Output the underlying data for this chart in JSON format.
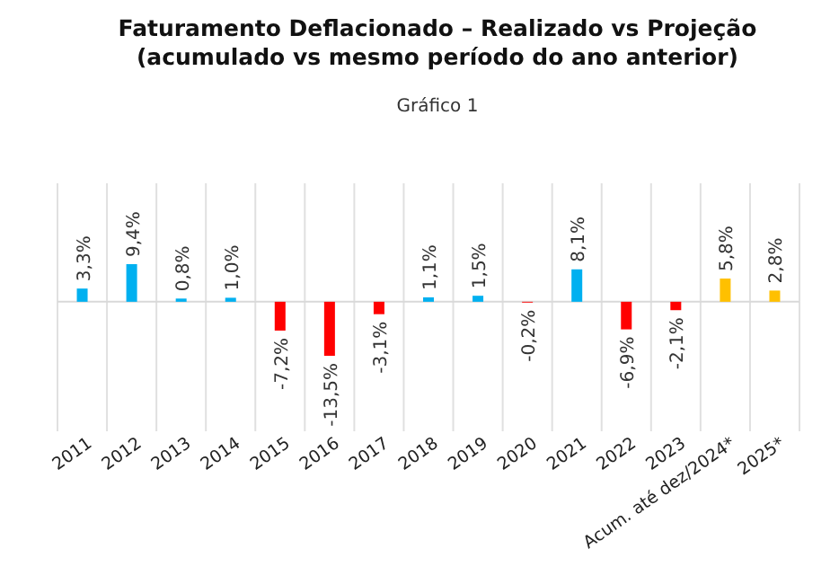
{
  "chart_data": {
    "type": "bar",
    "title": "Faturamento Deflacionado – Realizado vs Projeção\n(acumulado vs mesmo período do ano anterior)",
    "subtitle": "Gráfico 1",
    "categories": [
      "2011",
      "2012",
      "2013",
      "2014",
      "2015",
      "2016",
      "2017",
      "2018",
      "2019",
      "2020",
      "2021",
      "2022",
      "2023",
      "Acum. até dez/2024*",
      "2025*"
    ],
    "values": [
      3.3,
      9.4,
      0.8,
      1.0,
      -7.2,
      -13.5,
      -3.1,
      1.1,
      1.5,
      -0.2,
      8.1,
      -6.9,
      -2.1,
      5.8,
      2.8
    ],
    "value_labels": [
      "3,3%",
      "9,4%",
      "0,8%",
      "1,0%",
      "-7,2%",
      "-13,5%",
      "-3,1%",
      "1,1%",
      "1,5%",
      "-0,2%",
      "8,1%",
      "-6,9%",
      "-2,1%",
      "5,8%",
      "2,8%"
    ],
    "colors": [
      "#00b0f0",
      "#00b0f0",
      "#00b0f0",
      "#00b0f0",
      "#ff0000",
      "#ff0000",
      "#ff0000",
      "#00b0f0",
      "#00b0f0",
      "#ff0000",
      "#00b0f0",
      "#ff0000",
      "#ff0000",
      "#ffc000",
      "#ffc000"
    ],
    "grid": "x"
  }
}
